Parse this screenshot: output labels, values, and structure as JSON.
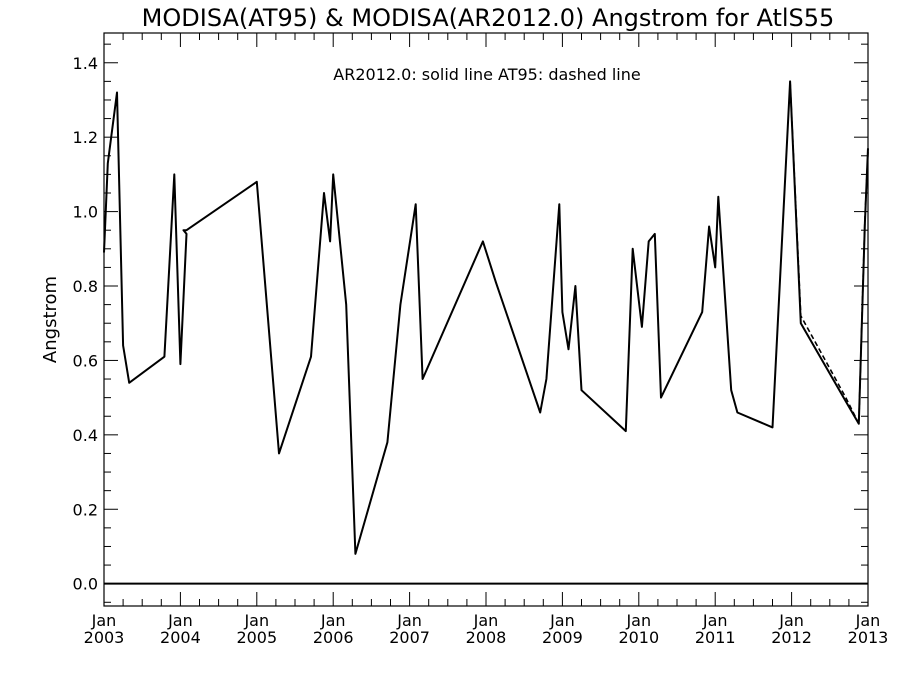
{
  "chart_data": {
    "type": "line",
    "title": "MODISA(AT95) & MODISA(AR2012.0)  Angstrom for AtlS55",
    "annotation": "AR2012.0: solid line   AT95: dashed line",
    "xlabel": "",
    "ylabel": "Angstrom",
    "xlim": [
      2003.0,
      2013.0
    ],
    "ylim": [
      -0.06,
      1.48
    ],
    "yticks": [
      "0.0",
      "0.2",
      "0.4",
      "0.6",
      "0.8",
      "1.0",
      "1.2",
      "1.4"
    ],
    "ytick_values": [
      0.0,
      0.2,
      0.4,
      0.6,
      0.8,
      1.0,
      1.2,
      1.4
    ],
    "xticks": [
      {
        "value": 2003,
        "month": "Jan",
        "year": "2003"
      },
      {
        "value": 2004,
        "month": "Jan",
        "year": "2004"
      },
      {
        "value": 2005,
        "month": "Jan",
        "year": "2005"
      },
      {
        "value": 2006,
        "month": "Jan",
        "year": "2006"
      },
      {
        "value": 2007,
        "month": "Jan",
        "year": "2007"
      },
      {
        "value": 2008,
        "month": "Jan",
        "year": "2008"
      },
      {
        "value": 2009,
        "month": "Jan",
        "year": "2009"
      },
      {
        "value": 2010,
        "month": "Jan",
        "year": "2010"
      },
      {
        "value": 2011,
        "month": "Jan",
        "year": "2011"
      },
      {
        "value": 2012,
        "month": "Jan",
        "year": "2012"
      },
      {
        "value": 2013,
        "month": "Jan",
        "year": "2013"
      }
    ],
    "zero_line": 0.0,
    "series": [
      {
        "name": "AR2012.0",
        "style": "solid",
        "color": "#000000",
        "x": [
          2003.0,
          2003.05,
          2003.17,
          2003.25,
          2003.33,
          2003.79,
          2003.92,
          2004.0,
          2004.08,
          2004.04,
          2004.08,
          2005.0,
          2005.29,
          2005.71,
          2005.88,
          2005.96,
          2006.0,
          2006.17,
          2006.29,
          2006.71,
          2006.88,
          2007.08,
          2007.17,
          2007.96,
          2008.13,
          2008.71,
          2008.79,
          2008.96,
          2009.0,
          2009.08,
          2009.17,
          2009.25,
          2009.83,
          2009.92,
          2010.04,
          2010.13,
          2010.21,
          2010.29,
          2010.83,
          2010.92,
          2011.0,
          2011.04,
          2011.21,
          2011.29,
          2011.75,
          2011.98,
          2012.12,
          2012.71,
          2012.88,
          2012.96,
          2013.0
        ],
        "y": [
          0.89,
          1.13,
          1.32,
          0.64,
          0.54,
          0.61,
          1.1,
          0.59,
          0.94,
          0.95,
          0.95,
          1.08,
          0.35,
          0.61,
          1.05,
          0.92,
          1.1,
          0.75,
          0.08,
          0.38,
          0.75,
          1.02,
          0.55,
          0.92,
          0.81,
          0.46,
          0.55,
          1.02,
          0.73,
          0.63,
          0.8,
          0.52,
          0.41,
          0.9,
          0.69,
          0.92,
          0.94,
          0.5,
          0.73,
          0.96,
          0.85,
          1.04,
          0.52,
          0.46,
          0.42,
          1.35,
          0.7,
          0.49,
          0.43,
          0.97,
          1.17
        ]
      },
      {
        "name": "AT95",
        "style": "dashed",
        "color": "#000000",
        "x": [
          2011.98,
          2012.12,
          2012.71,
          2012.88,
          2012.96,
          2013.0
        ],
        "y": [
          1.35,
          0.72,
          0.5,
          0.43,
          0.98,
          1.16
        ]
      }
    ]
  }
}
